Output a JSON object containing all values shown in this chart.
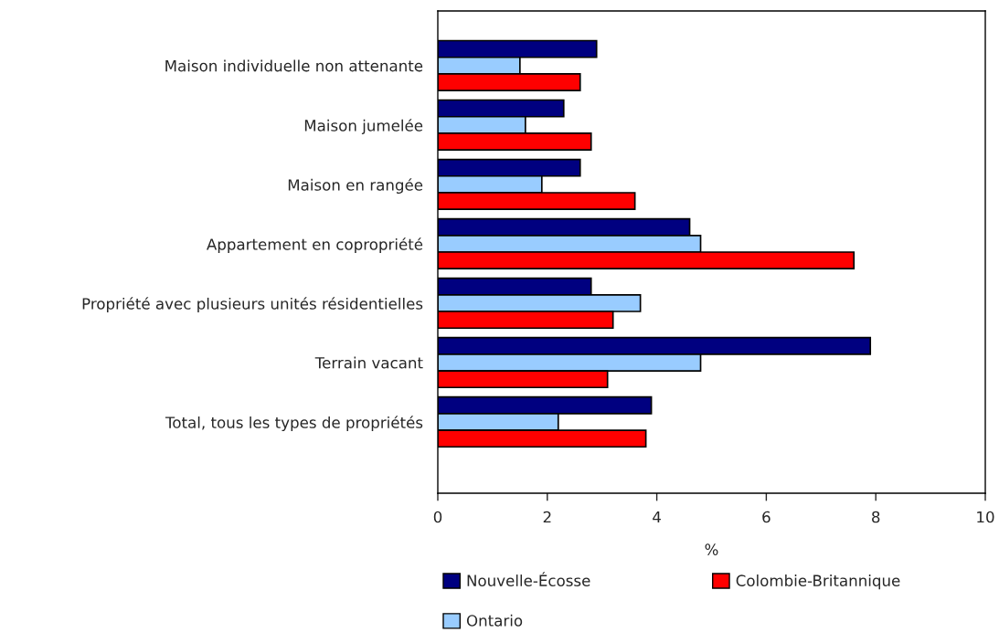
{
  "chart_data": {
    "type": "bar",
    "orientation": "horizontal",
    "xlabel": "%",
    "categories": [
      "Maison individuelle non attenante",
      "Maison jumelée",
      "Maison en rangée",
      "Appartement en copropriété",
      "Propriété avec plusieurs unités résidentielles",
      "Terrain vacant",
      "Total, tous les types de propriétés"
    ],
    "series": [
      {
        "name": "Nouvelle-Écosse",
        "color": "#000080",
        "values": [
          2.9,
          2.3,
          2.6,
          4.6,
          2.8,
          7.9,
          3.9
        ]
      },
      {
        "name": "Ontario",
        "color": "#99ccff",
        "values": [
          1.5,
          1.6,
          1.9,
          4.8,
          3.7,
          4.8,
          2.2
        ]
      },
      {
        "name": "Colombie-Britannique",
        "color": "#ff0000",
        "values": [
          2.6,
          2.8,
          3.6,
          7.6,
          3.2,
          3.1,
          3.8
        ]
      }
    ],
    "xlim": [
      0,
      10
    ],
    "xticks": [
      0,
      2,
      4,
      6,
      8,
      10
    ],
    "grid": false,
    "legend": "bottom"
  }
}
